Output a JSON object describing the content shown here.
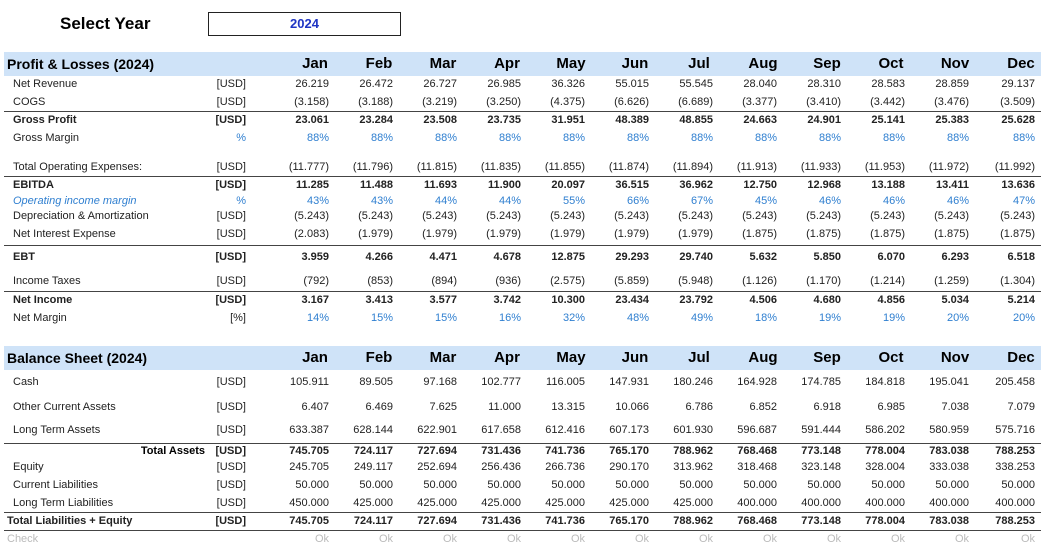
{
  "selector": {
    "label": "Select Year",
    "value": "2024"
  },
  "profit_loss": {
    "title": "Profit & Losses (2024)",
    "months": [
      "Jan",
      "Feb",
      "Mar",
      "Apr",
      "May",
      "Jun",
      "Jul",
      "Aug",
      "Sep",
      "Oct",
      "Nov",
      "Dec"
    ],
    "rows": [
      {
        "label": "Net Revenue",
        "unit": "[USD]",
        "values": [
          "26.219",
          "26.472",
          "26.727",
          "26.985",
          "36.326",
          "55.015",
          "55.545",
          "28.040",
          "28.310",
          "28.583",
          "28.859",
          "29.137"
        ]
      },
      {
        "label": "COGS",
        "unit": "[USD]",
        "values": [
          "(3.158)",
          "(3.188)",
          "(3.219)",
          "(3.250)",
          "(4.375)",
          "(6.626)",
          "(6.689)",
          "(3.377)",
          "(3.410)",
          "(3.442)",
          "(3.476)",
          "(3.509)"
        ]
      },
      {
        "label": "Gross Profit",
        "unit": "[USD]",
        "values": [
          "23.061",
          "23.284",
          "23.508",
          "23.735",
          "31.951",
          "48.389",
          "48.855",
          "24.663",
          "24.901",
          "25.141",
          "25.383",
          "25.628"
        ]
      },
      {
        "label": "Gross Margin",
        "unit": "%",
        "values": [
          "88%",
          "88%",
          "88%",
          "88%",
          "88%",
          "88%",
          "88%",
          "88%",
          "88%",
          "88%",
          "88%",
          "88%"
        ]
      },
      {
        "label": "Total Operating Expenses:",
        "unit": "[USD]",
        "values": [
          "(11.777)",
          "(11.796)",
          "(11.815)",
          "(11.835)",
          "(11.855)",
          "(11.874)",
          "(11.894)",
          "(11.913)",
          "(11.933)",
          "(11.953)",
          "(11.972)",
          "(11.992)"
        ]
      },
      {
        "label": "EBITDA",
        "unit": "[USD]",
        "values": [
          "11.285",
          "11.488",
          "11.693",
          "11.900",
          "20.097",
          "36.515",
          "36.962",
          "12.750",
          "12.968",
          "13.188",
          "13.411",
          "13.636"
        ]
      },
      {
        "label": "Operating income margin",
        "unit": "%",
        "values": [
          "43%",
          "43%",
          "44%",
          "44%",
          "55%",
          "66%",
          "67%",
          "45%",
          "46%",
          "46%",
          "46%",
          "47%"
        ]
      },
      {
        "label": "Depreciation & Amortization",
        "unit": "[USD]",
        "values": [
          "(5.243)",
          "(5.243)",
          "(5.243)",
          "(5.243)",
          "(5.243)",
          "(5.243)",
          "(5.243)",
          "(5.243)",
          "(5.243)",
          "(5.243)",
          "(5.243)",
          "(5.243)"
        ]
      },
      {
        "label": "Net Interest Expense",
        "unit": "[USD]",
        "values": [
          "(2.083)",
          "(1.979)",
          "(1.979)",
          "(1.979)",
          "(1.979)",
          "(1.979)",
          "(1.979)",
          "(1.875)",
          "(1.875)",
          "(1.875)",
          "(1.875)",
          "(1.875)"
        ]
      },
      {
        "label": "EBT",
        "unit": "[USD]",
        "values": [
          "3.959",
          "4.266",
          "4.471",
          "4.678",
          "12.875",
          "29.293",
          "29.740",
          "5.632",
          "5.850",
          "6.070",
          "6.293",
          "6.518"
        ]
      },
      {
        "label": "Income Taxes",
        "unit": "[USD]",
        "values": [
          "(792)",
          "(853)",
          "(894)",
          "(936)",
          "(2.575)",
          "(5.859)",
          "(5.948)",
          "(1.126)",
          "(1.170)",
          "(1.214)",
          "(1.259)",
          "(1.304)"
        ]
      },
      {
        "label": "Net Income",
        "unit": "[USD]",
        "values": [
          "3.167",
          "3.413",
          "3.577",
          "3.742",
          "10.300",
          "23.434",
          "23.792",
          "4.506",
          "4.680",
          "4.856",
          "5.034",
          "5.214"
        ]
      },
      {
        "label": "Net Margin",
        "unit": "[%]",
        "values": [
          "14%",
          "15%",
          "15%",
          "16%",
          "32%",
          "48%",
          "49%",
          "18%",
          "19%",
          "19%",
          "20%",
          "20%"
        ]
      }
    ]
  },
  "balance_sheet": {
    "title": "Balance Sheet (2024)",
    "months": [
      "Jan",
      "Feb",
      "Mar",
      "Apr",
      "May",
      "Jun",
      "Jul",
      "Aug",
      "Sep",
      "Oct",
      "Nov",
      "Dec"
    ],
    "rows": [
      {
        "label": "Cash",
        "unit": "[USD]",
        "values": [
          "105.911",
          "89.505",
          "97.168",
          "102.777",
          "116.005",
          "147.931",
          "180.246",
          "164.928",
          "174.785",
          "184.818",
          "195.041",
          "205.458"
        ]
      },
      {
        "label": "Other Current Assets",
        "unit": "[USD]",
        "values": [
          "6.407",
          "6.469",
          "7.625",
          "11.000",
          "13.315",
          "10.066",
          "6.786",
          "6.852",
          "6.918",
          "6.985",
          "7.038",
          "7.079"
        ]
      },
      {
        "label": "Long Term Assets",
        "unit": "[USD]",
        "values": [
          "633.387",
          "628.144",
          "622.901",
          "617.658",
          "612.416",
          "607.173",
          "601.930",
          "596.687",
          "591.444",
          "586.202",
          "580.959",
          "575.716"
        ]
      },
      {
        "label": "Total Assets",
        "unit": "[USD]",
        "values": [
          "745.705",
          "724.117",
          "727.694",
          "731.436",
          "741.736",
          "765.170",
          "788.962",
          "768.468",
          "773.148",
          "778.004",
          "783.038",
          "788.253"
        ]
      },
      {
        "label": "Equity",
        "unit": "[USD]",
        "values": [
          "245.705",
          "249.117",
          "252.694",
          "256.436",
          "266.736",
          "290.170",
          "313.962",
          "318.468",
          "323.148",
          "328.004",
          "333.038",
          "338.253"
        ]
      },
      {
        "label": "Current Liabilities",
        "unit": "[USD]",
        "values": [
          "50.000",
          "50.000",
          "50.000",
          "50.000",
          "50.000",
          "50.000",
          "50.000",
          "50.000",
          "50.000",
          "50.000",
          "50.000",
          "50.000"
        ]
      },
      {
        "label": "Long Term Liabilities",
        "unit": "[USD]",
        "values": [
          "450.000",
          "425.000",
          "425.000",
          "425.000",
          "425.000",
          "425.000",
          "425.000",
          "400.000",
          "400.000",
          "400.000",
          "400.000",
          "400.000"
        ]
      },
      {
        "label": "Total Liabilities + Equity",
        "unit": "[USD]",
        "values": [
          "745.705",
          "724.117",
          "727.694",
          "731.436",
          "741.736",
          "765.170",
          "788.962",
          "768.468",
          "773.148",
          "778.004",
          "783.038",
          "788.253"
        ]
      }
    ]
  },
  "check": {
    "label": "Check",
    "values": [
      "Ok",
      "Ok",
      "Ok",
      "Ok",
      "Ok",
      "Ok",
      "Ok",
      "Ok",
      "Ok",
      "Ok",
      "Ok",
      "Ok"
    ]
  }
}
